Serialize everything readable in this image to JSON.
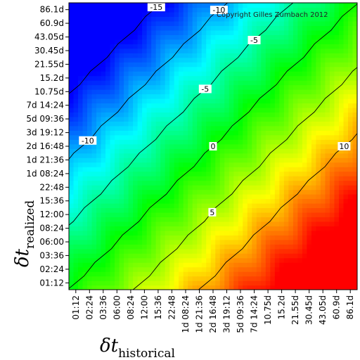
{
  "chart_data": {
    "type": "heatmap",
    "title": "",
    "copyright": "Copyright Gilles Zumbach 2012",
    "x_ticks": [
      "01:12",
      "02:24",
      "03:36",
      "06:00",
      "08:24",
      "12:00",
      "15:36",
      "22:48",
      "1d 08:24",
      "1d 21:36",
      "2d 16:48",
      "3d 19:12",
      "5d 09:36",
      "7d 14:24",
      "10.75d",
      "15.2d",
      "21.55d",
      "30.45d",
      "43.05d",
      "60.9d",
      "86.1d"
    ],
    "y_ticks": [
      "01:12",
      "02:24",
      "03:36",
      "06:00",
      "08:24",
      "12:00",
      "15:36",
      "22:48",
      "1d 08:24",
      "1d 21:36",
      "2d 16:48",
      "3d 19:12",
      "5d 09:36",
      "7d 14:24",
      "10.75d",
      "15.2d",
      "21.55d",
      "30.45d",
      "43.05d",
      "60.9d",
      "86.1d"
    ],
    "xlabel": {
      "symbol": "δt",
      "subscript": "historical"
    },
    "ylabel": {
      "symbol": "δt",
      "subscript": "realized"
    },
    "color_scale": {
      "min": -15,
      "max": 15,
      "colors": [
        "#0000ff",
        "#00ffff",
        "#00ff00",
        "#ffff00",
        "#ff0000"
      ]
    },
    "contour_levels": [
      -15,
      -10,
      -5,
      0,
      5,
      10
    ],
    "contour_labels": [
      {
        "level": -15,
        "text": "-15"
      },
      {
        "level": -10,
        "text": "-10"
      },
      {
        "level": -10,
        "text": "-10"
      },
      {
        "level": -5,
        "text": "-5"
      },
      {
        "level": -5,
        "text": "-5"
      },
      {
        "level": 0,
        "text": "0"
      },
      {
        "level": 5,
        "text": "5"
      },
      {
        "level": 10,
        "text": "10"
      }
    ],
    "grid": false
  }
}
